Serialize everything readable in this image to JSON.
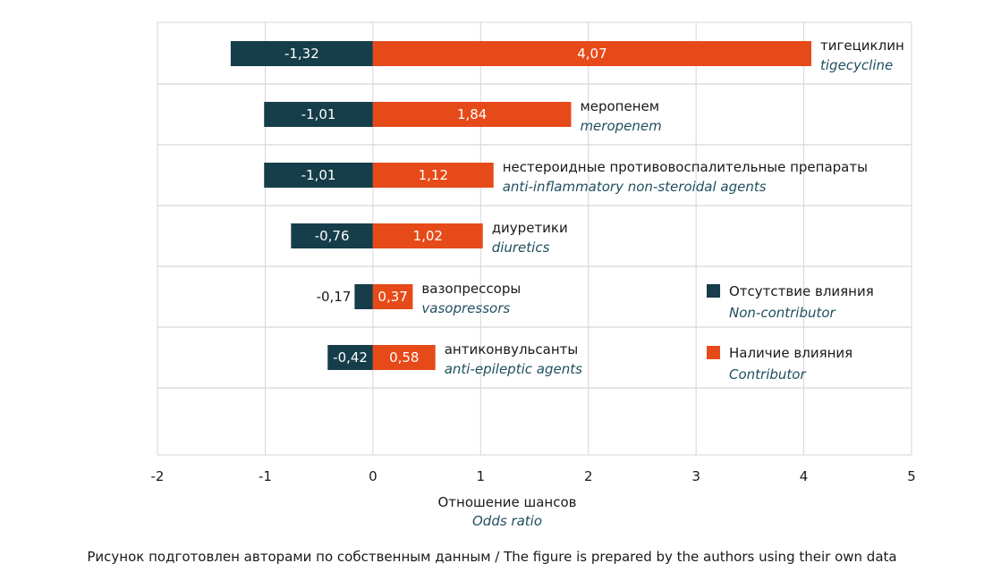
{
  "chart_data": {
    "type": "bar",
    "orientation": "horizontal",
    "stacked": "diverging",
    "categories": [
      {
        "ru": "тигециклин",
        "en": "tigecycline"
      },
      {
        "ru": "меропенем",
        "en": "meropenem"
      },
      {
        "ru": "нестероидные противовоспалительные препараты",
        "en": "anti-inflammatory non-steroidal agents"
      },
      {
        "ru": "диуретики",
        "en": "diuretics"
      },
      {
        "ru": "вазопрессоры",
        "en": "vasopressors"
      },
      {
        "ru": "антиконвульсанты",
        "en": "anti-epileptic agents"
      }
    ],
    "series": [
      {
        "name_ru": "Отсутствие влияния",
        "name_en": "Non-contributor",
        "color": "#163d4a",
        "values": [
          -1.32,
          -1.01,
          -1.01,
          -0.76,
          -0.17,
          -0.42
        ],
        "labels": [
          "-1,32",
          "-1,01",
          "-1,01",
          "-0,76",
          "-0,17",
          "-0,42"
        ]
      },
      {
        "name_ru": "Наличие влияния",
        "name_en": "Contributor",
        "color": "#e64a19",
        "values": [
          4.07,
          1.84,
          1.12,
          1.02,
          0.37,
          0.58
        ],
        "labels": [
          "4,07",
          "1,84",
          "1,12",
          "1,02",
          "0,37",
          "0,58"
        ]
      }
    ],
    "xlim": [
      -2,
      5
    ],
    "xticks": [
      -2,
      -1,
      0,
      1,
      2,
      3,
      4,
      5
    ],
    "xlabel_ru": "Отношение шансов",
    "xlabel_en": "Odds ratio",
    "grid": true,
    "legend": "right"
  },
  "footnote": "Рисунок подготовлен авторами по собственным данным / The figure is prepared by the authors using their own data"
}
